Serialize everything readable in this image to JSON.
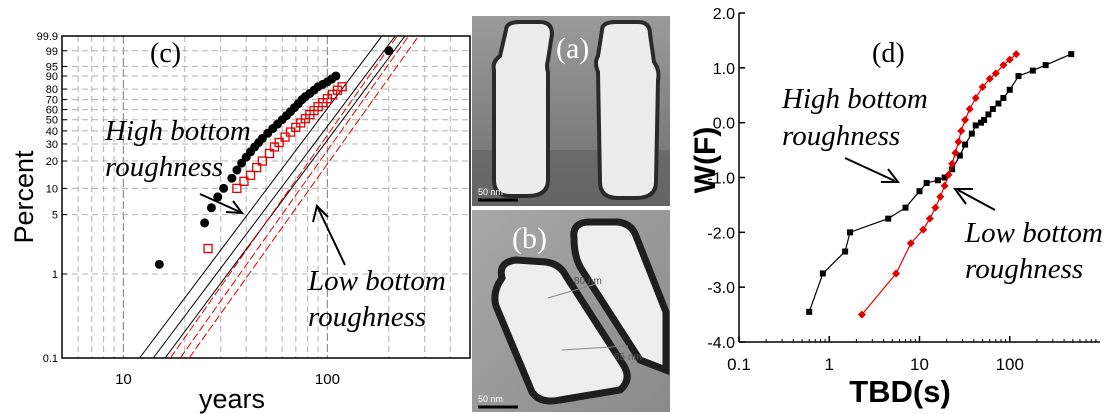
{
  "chart_data": [
    {
      "panel": "c",
      "type": "scatter",
      "panel_label": "(c)",
      "xlabel": "years",
      "ylabel": "Percent",
      "x_scale": "log",
      "y_scale": "weibull-probability",
      "xlim": [
        5,
        500
      ],
      "ylim": [
        0.1,
        99.9
      ],
      "grid": true,
      "x_ticks": [
        {
          "value": 10,
          "label": "10"
        },
        {
          "value": 100,
          "label": "100"
        }
      ],
      "y_ticks": [
        {
          "value": 0.1,
          "label": "0.1"
        },
        {
          "value": 1,
          "label": "1"
        },
        {
          "value": 5,
          "label": "5"
        },
        {
          "value": 10,
          "label": "10"
        },
        {
          "value": 20,
          "label": "20"
        },
        {
          "value": 30,
          "label": "30"
        },
        {
          "value": 40,
          "label": "40"
        },
        {
          "value": 50,
          "label": "50"
        },
        {
          "value": 60,
          "label": "60"
        },
        {
          "value": 70,
          "label": "70"
        },
        {
          "value": 80,
          "label": "80"
        },
        {
          "value": 90,
          "label": "90"
        },
        {
          "value": 95,
          "label": "95"
        },
        {
          "value": 99,
          "label": "99"
        },
        {
          "value": 99.9,
          "label": "99.9"
        }
      ],
      "annotations": [
        {
          "lines": [
            "High bottom",
            "roughness"
          ]
        },
        {
          "lines": [
            "Low bottom",
            "roughness"
          ]
        }
      ],
      "series": [
        {
          "color": "#000000",
          "marker": "filled-circle",
          "fit_lines": [
            [
              [
                12,
                0.1
              ],
              [
                185,
                99.9
              ]
            ],
            [
              [
                14,
                0.1
              ],
              [
                215,
                99.9
              ]
            ],
            [
              [
                16,
                0.1
              ],
              [
                240,
                99.9
              ]
            ]
          ],
          "points": [
            [
              15,
              1.3
            ],
            [
              25,
              4
            ],
            [
              27,
              6
            ],
            [
              29,
              8
            ],
            [
              31,
              10
            ],
            [
              34,
              13
            ],
            [
              36,
              16
            ],
            [
              38,
              19
            ],
            [
              40,
              22
            ],
            [
              42,
              25
            ],
            [
              44,
              28
            ],
            [
              46,
              31
            ],
            [
              48,
              34
            ],
            [
              51,
              38
            ],
            [
              54,
              42
            ],
            [
              57,
              46
            ],
            [
              60,
              50
            ],
            [
              63,
              54
            ],
            [
              66,
              58
            ],
            [
              69,
              62
            ],
            [
              72,
              66
            ],
            [
              75,
              70
            ],
            [
              78,
              73
            ],
            [
              82,
              76
            ],
            [
              86,
              79
            ],
            [
              90,
              82
            ],
            [
              95,
              84
            ],
            [
              100,
              86
            ],
            [
              105,
              88
            ],
            [
              110,
              90
            ],
            [
              200,
              99
            ]
          ]
        },
        {
          "color": "#e00000",
          "marker": "open-square",
          "fit_lines": [
            [
              [
                17,
                0.1
              ],
              [
                220,
                99.9
              ]
            ],
            [
              [
                19,
                0.1
              ],
              [
                250,
                99.9
              ]
            ],
            [
              [
                21,
                0.1
              ],
              [
                280,
                99.9
              ]
            ]
          ],
          "points": [
            [
              26,
              2
            ],
            [
              36,
              10
            ],
            [
              39,
              12
            ],
            [
              42,
              14
            ],
            [
              45,
              17
            ],
            [
              48,
              20
            ],
            [
              52,
              24
            ],
            [
              55,
              28
            ],
            [
              58,
              31
            ],
            [
              62,
              35
            ],
            [
              66,
              39
            ],
            [
              70,
              43
            ],
            [
              74,
              47
            ],
            [
              78,
              51
            ],
            [
              82,
              55
            ],
            [
              86,
              59
            ],
            [
              90,
              63
            ],
            [
              95,
              67
            ],
            [
              100,
              71
            ],
            [
              106,
              75
            ],
            [
              112,
              79
            ],
            [
              118,
              82
            ]
          ]
        }
      ]
    },
    {
      "panel": "a",
      "type": "image",
      "panel_label": "(a)",
      "scale_bar": "50 nm"
    },
    {
      "panel": "b",
      "type": "image",
      "panel_label": "(b)",
      "measurements": [
        "80 nm",
        "65 nm"
      ],
      "scale_bar": "50 nm"
    },
    {
      "panel": "d",
      "type": "line",
      "panel_label": "(d)",
      "xlabel": "TBD(s)",
      "ylabel": "W(F)",
      "x_scale": "log",
      "xlim": [
        0.1,
        1000
      ],
      "ylim": [
        -4.0,
        2.0
      ],
      "grid": false,
      "x_ticks": [
        {
          "value": 0.1,
          "label": "0.1"
        },
        {
          "value": 1,
          "label": "1"
        },
        {
          "value": 10,
          "label": "10"
        },
        {
          "value": 100,
          "label": "100"
        }
      ],
      "y_ticks": [
        {
          "value": -4.0,
          "label": "-4.0"
        },
        {
          "value": -3.0,
          "label": "-3.0"
        },
        {
          "value": -2.0,
          "label": "-2.0"
        },
        {
          "value": -1.0,
          "label": "-1.0"
        },
        {
          "value": 0.0,
          "label": "0.0"
        },
        {
          "value": 1.0,
          "label": "1.0"
        },
        {
          "value": 2.0,
          "label": "2.0"
        }
      ],
      "annotations": [
        {
          "lines": [
            "High bottom",
            "roughness"
          ]
        },
        {
          "lines": [
            "Low bottom",
            "roughness"
          ]
        }
      ],
      "series": [
        {
          "color": "#000000",
          "marker": "filled-square",
          "points": [
            [
              0.6,
              -3.45
            ],
            [
              0.85,
              -2.75
            ],
            [
              1.5,
              -2.35
            ],
            [
              1.7,
              -2.0
            ],
            [
              4.5,
              -1.75
            ],
            [
              7,
              -1.55
            ],
            [
              10,
              -1.25
            ],
            [
              12,
              -1.1
            ],
            [
              16,
              -1.05
            ],
            [
              19,
              -1.0
            ],
            [
              23,
              -0.85
            ],
            [
              28,
              -0.6
            ],
            [
              32,
              -0.4
            ],
            [
              38,
              -0.2
            ],
            [
              42,
              -0.05
            ],
            [
              48,
              0.0
            ],
            [
              52,
              0.05
            ],
            [
              58,
              0.15
            ],
            [
              65,
              0.25
            ],
            [
              75,
              0.35
            ],
            [
              85,
              0.45
            ],
            [
              100,
              0.6
            ],
            [
              125,
              0.85
            ],
            [
              180,
              0.95
            ],
            [
              250,
              1.05
            ],
            [
              480,
              1.25
            ]
          ]
        },
        {
          "color": "#e00000",
          "marker": "filled-diamond",
          "points": [
            [
              2.3,
              -3.5
            ],
            [
              5.5,
              -2.75
            ],
            [
              8,
              -2.2
            ],
            [
              11,
              -1.95
            ],
            [
              13,
              -1.75
            ],
            [
              15,
              -1.55
            ],
            [
              17,
              -1.35
            ],
            [
              19,
              -1.15
            ],
            [
              21,
              -0.95
            ],
            [
              23,
              -0.75
            ],
            [
              25,
              -0.55
            ],
            [
              27,
              -0.35
            ],
            [
              29,
              -0.15
            ],
            [
              32,
              0.05
            ],
            [
              36,
              0.25
            ],
            [
              42,
              0.45
            ],
            [
              50,
              0.65
            ],
            [
              60,
              0.8
            ],
            [
              70,
              0.9
            ],
            [
              85,
              1.05
            ],
            [
              100,
              1.15
            ],
            [
              118,
              1.25
            ]
          ]
        }
      ]
    }
  ]
}
